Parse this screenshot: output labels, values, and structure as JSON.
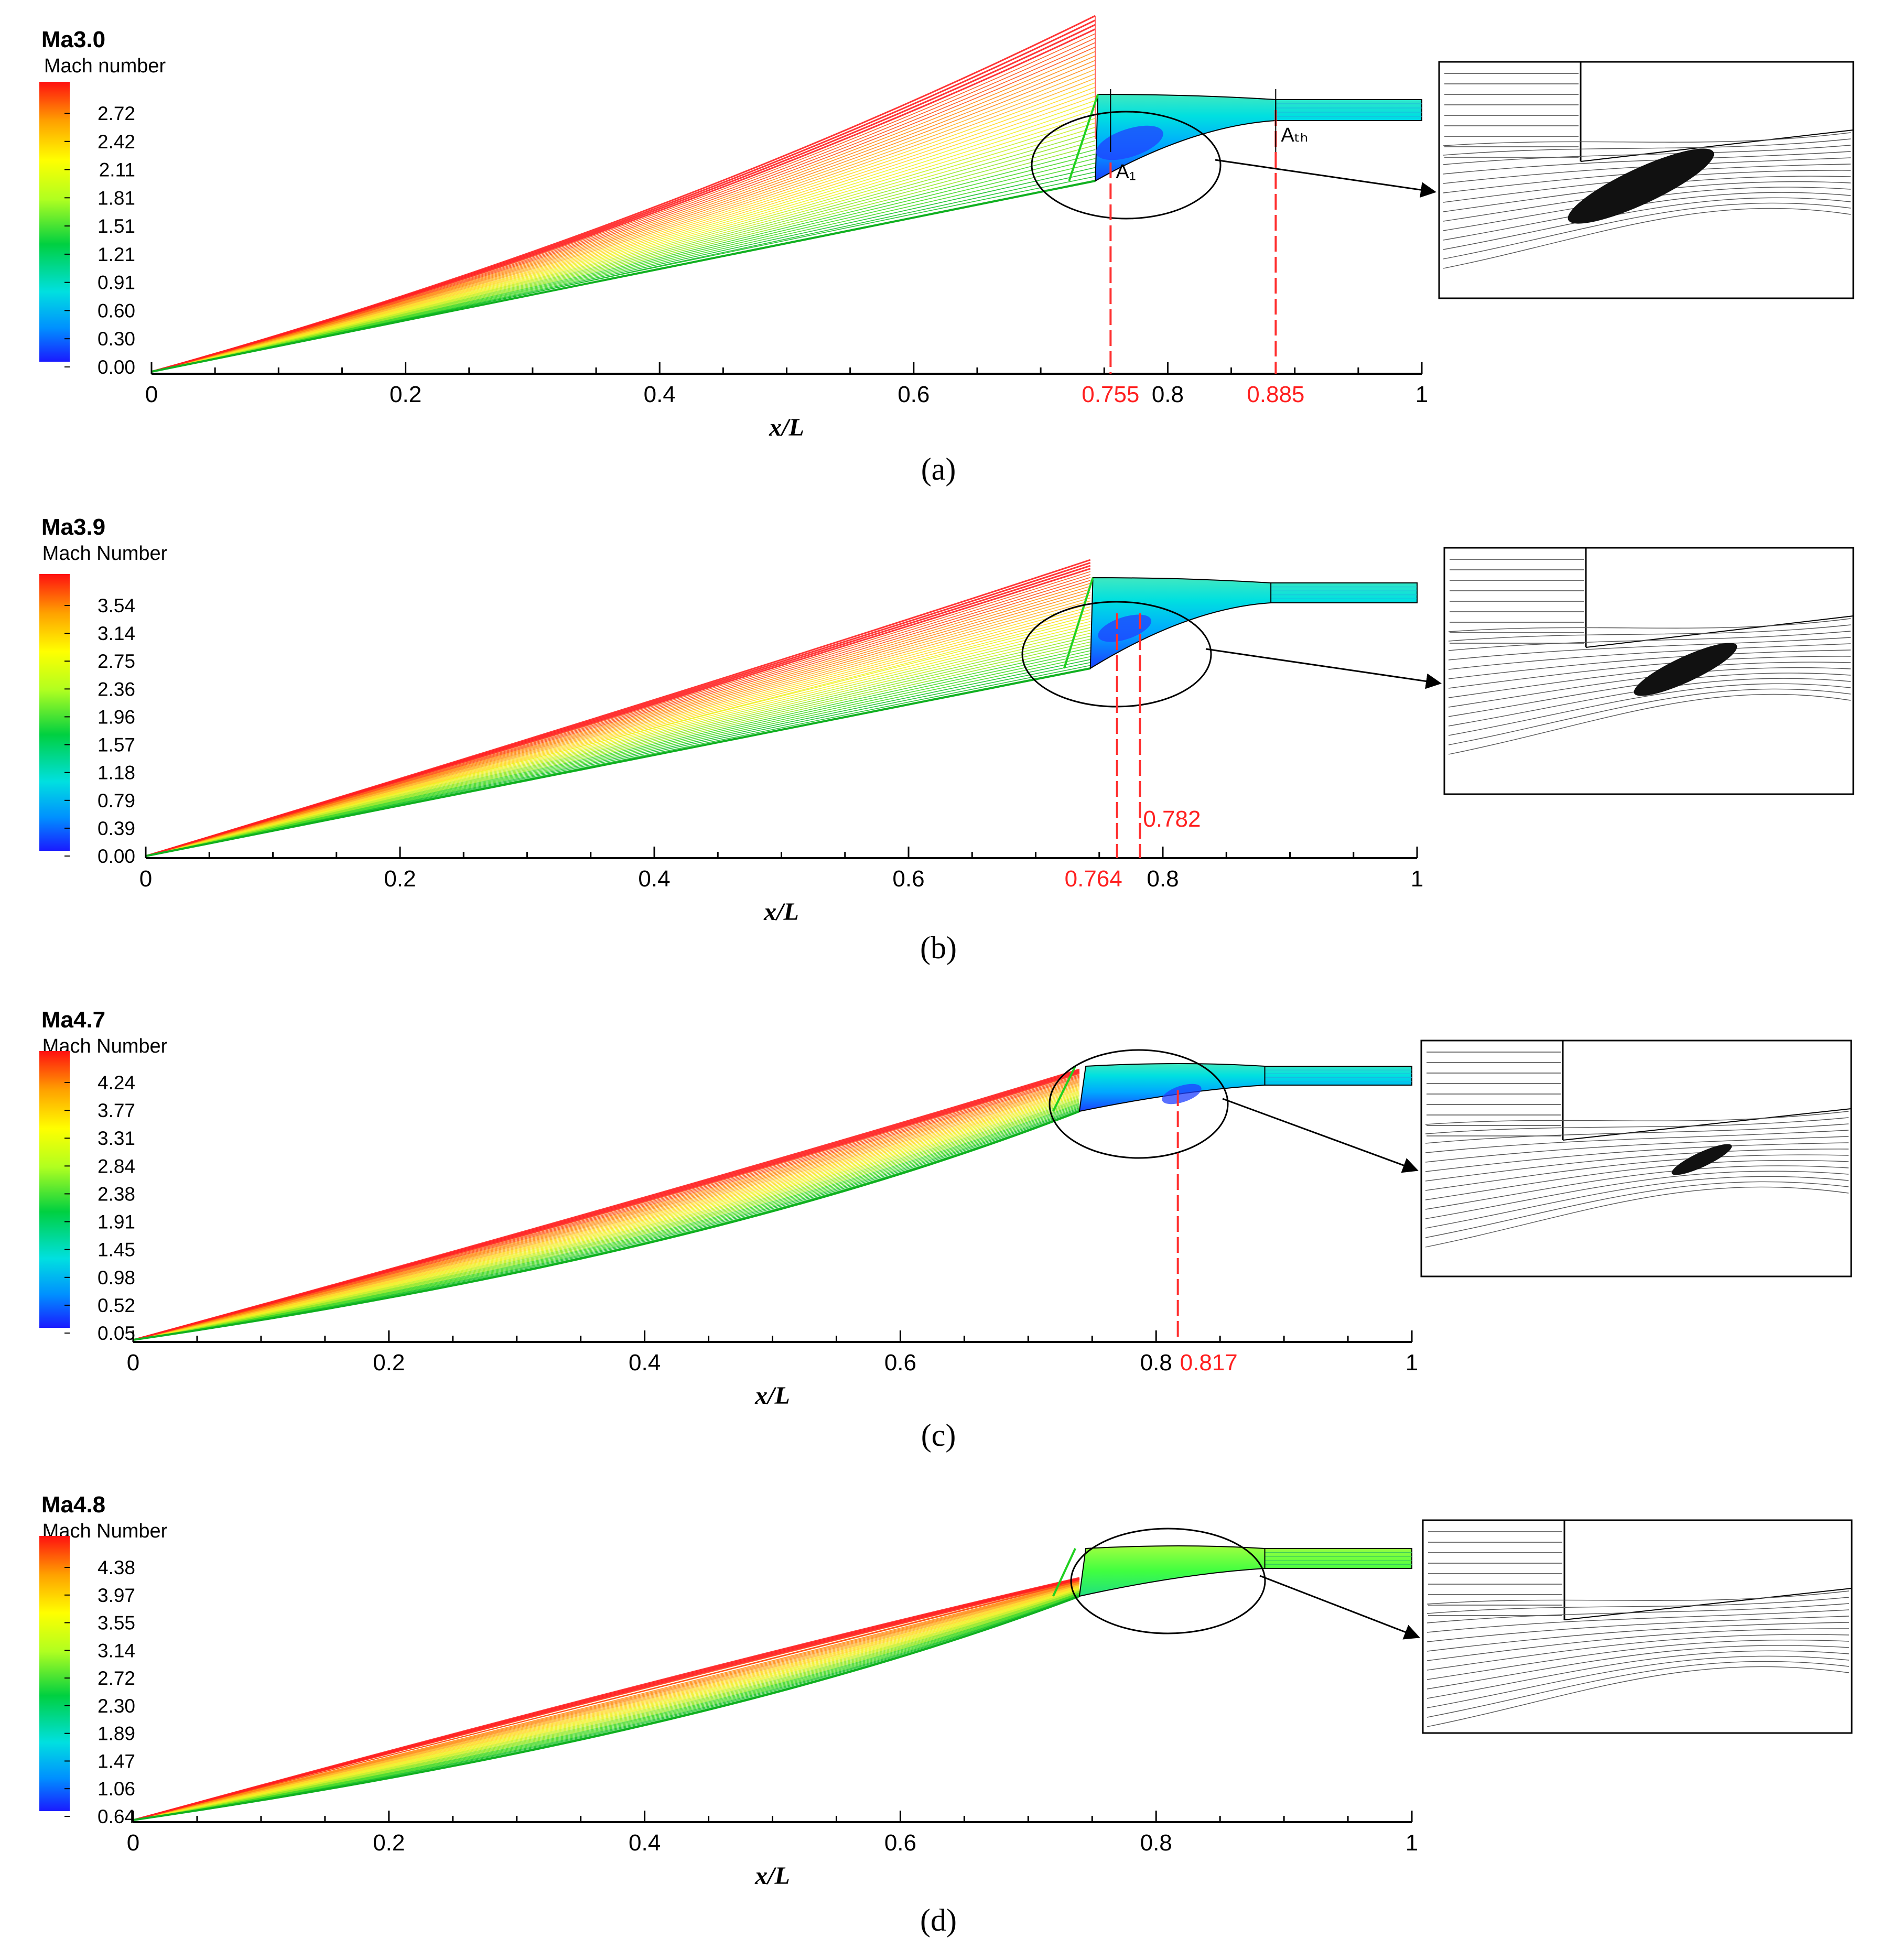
{
  "chart_data": [
    {
      "type": "contour",
      "panel_label": "(a)",
      "title": "Ma3.0",
      "colorbar_title": "Mach number",
      "colorbar_ticks": [
        "2.72",
        "2.42",
        "2.11",
        "1.81",
        "1.51",
        "1.21",
        "0.91",
        "0.60",
        "0.30",
        "0.00"
      ],
      "xlabel": "x/L",
      "xlim": [
        0,
        1
      ],
      "x_ticks": [
        "0",
        "0.2",
        "0.4",
        "0.6",
        "0.8",
        "1"
      ],
      "ramp_end_x": 0.743,
      "cowl_lip_x": 0.745,
      "throat_x": 0.885,
      "exit_x": 1.0,
      "markers": [
        {
          "x": 0.755,
          "label": "0.755",
          "tag": "A₁"
        },
        {
          "x": 0.885,
          "label": "0.885",
          "tag": "Aₜₕ"
        }
      ],
      "zoom_center_x": 0.77,
      "separation_size": 0.85
    },
    {
      "type": "contour",
      "panel_label": "(b)",
      "title": "Ma3.9",
      "colorbar_title": "Mach Number",
      "colorbar_ticks": [
        "3.54",
        "3.14",
        "2.75",
        "2.36",
        "1.96",
        "1.57",
        "1.18",
        "0.79",
        "0.39",
        "0.00"
      ],
      "xlabel": "x/L",
      "xlim": [
        0,
        1
      ],
      "x_ticks": [
        "0",
        "0.2",
        "0.4",
        "0.6",
        "0.8",
        "1"
      ],
      "ramp_end_x": 0.743,
      "cowl_lip_x": 0.745,
      "throat_x": 0.885,
      "exit_x": 1.0,
      "markers": [
        {
          "x": 0.764,
          "label": "0.764",
          "tag": ""
        },
        {
          "x": 0.782,
          "label": "0.782",
          "tag": ""
        }
      ],
      "zoom_center_x": 0.77,
      "separation_size": 0.6
    },
    {
      "type": "contour",
      "panel_label": "(c)",
      "title": "Ma4.7",
      "colorbar_title": "Mach Number",
      "colorbar_ticks": [
        "4.24",
        "3.77",
        "3.31",
        "2.84",
        "2.38",
        "1.91",
        "1.45",
        "0.98",
        "0.52",
        "0.05"
      ],
      "xlabel": "x/L",
      "xlim": [
        0,
        1
      ],
      "x_ticks": [
        "0",
        "0.2",
        "0.4",
        "0.6",
        "0.8",
        "1"
      ],
      "ramp_end_x": 0.74,
      "cowl_lip_x": 0.745,
      "throat_x": 0.885,
      "exit_x": 1.0,
      "markers": [
        {
          "x": 0.817,
          "label": "0.817",
          "tag": ""
        }
      ],
      "zoom_center_x": 0.82,
      "separation_size": 0.35
    },
    {
      "type": "contour",
      "panel_label": "(d)",
      "title": "Ma4.8",
      "colorbar_title": "Mach Number",
      "colorbar_ticks": [
        "4.38",
        "3.97",
        "3.55",
        "3.14",
        "2.72",
        "2.30",
        "1.89",
        "1.47",
        "1.06",
        "0.64"
      ],
      "xlabel": "x/L",
      "xlim": [
        0,
        1
      ],
      "x_ticks": [
        "0",
        "0.2",
        "0.4",
        "0.6",
        "0.8",
        "1"
      ],
      "ramp_end_x": 0.74,
      "cowl_lip_x": 0.745,
      "throat_x": 0.885,
      "exit_x": 1.0,
      "markers": [],
      "zoom_center_x": 0.81,
      "separation_size": 0.0
    }
  ]
}
